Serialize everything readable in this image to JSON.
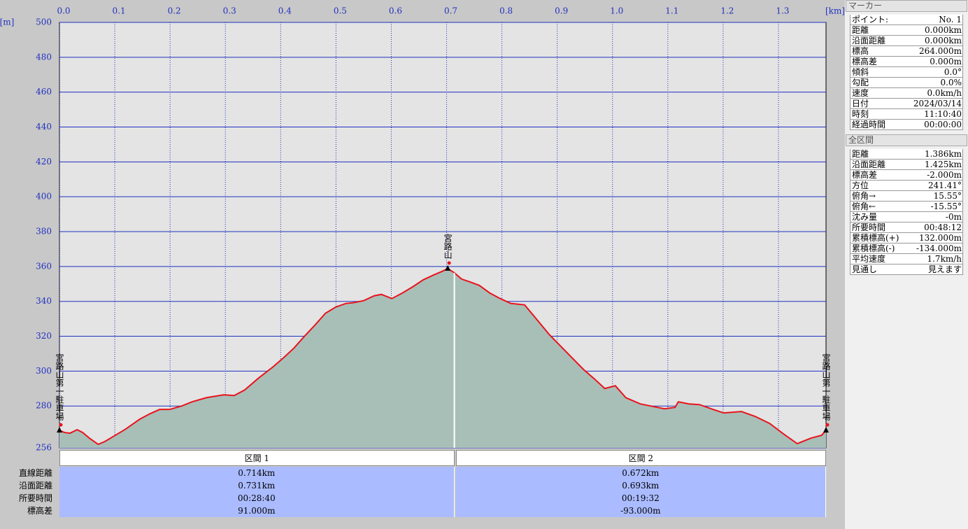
{
  "chart_data": {
    "type": "area",
    "x_unit": "[km]",
    "y_unit": "[m]",
    "x": [
      0,
      0.009,
      0.019,
      0.032,
      0.042,
      0.054,
      0.07,
      0.082,
      0.101,
      0.12,
      0.145,
      0.164,
      0.181,
      0.199,
      0.221,
      0.24,
      0.266,
      0.297,
      0.316,
      0.335,
      0.36,
      0.386,
      0.405,
      0.424,
      0.443,
      0.462,
      0.481,
      0.5,
      0.518,
      0.531,
      0.55,
      0.569,
      0.582,
      0.601,
      0.62,
      0.639,
      0.658,
      0.677,
      0.692,
      0.702,
      0.714,
      0.727,
      0.742,
      0.759,
      0.778,
      0.797,
      0.816,
      0.841,
      0.86,
      0.885,
      0.917,
      0.948,
      0.967,
      0.986,
      1.005,
      1.024,
      1.05,
      1.075,
      1.094,
      1.113,
      1.119,
      1.138,
      1.157,
      1.182,
      1.201,
      1.233,
      1.258,
      1.284,
      1.309,
      1.334,
      1.359,
      1.378,
      1.386
    ],
    "values": [
      266,
      264.8,
      264.4,
      266.4,
      264.8,
      261.6,
      258,
      259.6,
      263.2,
      266.8,
      272.4,
      275.6,
      278,
      278,
      280,
      282.4,
      284.8,
      286.4,
      286,
      289.2,
      296,
      302.4,
      307.6,
      313.2,
      320,
      326.4,
      333.2,
      336.8,
      338.8,
      339.2,
      340.4,
      343.2,
      344,
      341.6,
      344.8,
      348.4,
      352.4,
      355.2,
      357.2,
      358.8,
      356.4,
      352.8,
      351.2,
      349.2,
      344.8,
      341.6,
      338.8,
      338,
      330.8,
      321.2,
      310.8,
      300.8,
      295.6,
      290,
      291.6,
      284.8,
      281.2,
      279.6,
      278.4,
      279.2,
      282.4,
      281.2,
      280.8,
      278,
      276,
      276.8,
      274,
      270,
      264,
      258.4,
      261.6,
      263.2,
      266
    ],
    "line_color": "#e8141c",
    "fill_color": "#a8bfb8",
    "xlim": [
      0,
      1.386
    ],
    "ylim": [
      256,
      500
    ],
    "xticks": [
      {
        "value": 0,
        "label": "0.0"
      },
      0.1,
      0.2,
      0.3,
      0.4,
      0.5,
      0.6,
      0.7,
      0.8,
      0.9,
      {
        "value": 1,
        "label": "1.0"
      },
      1.1,
      1.2,
      1.3
    ],
    "yticks": [
      256,
      280,
      300,
      320,
      340,
      360,
      380,
      400,
      420,
      440,
      460,
      480,
      500
    ],
    "grid": true,
    "divider_x": 0.714,
    "markers": [
      {
        "label": "宮路山第一駐車場",
        "x": 0
      },
      {
        "label": "宮路山",
        "x": 0.702
      },
      {
        "label": "宮路山第一駐車場",
        "x": 1.386
      }
    ]
  },
  "sections": {
    "headers": [
      "区間 1",
      "区間 2"
    ],
    "rows": [
      [
        "直線距離",
        "0.714km",
        "0.672km"
      ],
      [
        "沿面距離",
        "0.731km",
        "0.693km"
      ],
      [
        "所要時間",
        "00:28:40",
        "00:19:32"
      ],
      [
        "標高差",
        "91.000m",
        "-93.000m"
      ]
    ]
  },
  "marker_panel": {
    "title": "マーカー",
    "rows": [
      [
        "ポイント:",
        "No. 1"
      ],
      [
        "距離",
        "0.000km"
      ],
      [
        "沿面距離",
        "0.000km"
      ],
      [
        "標高",
        "264.000m"
      ],
      [
        "標高差",
        "0.000m"
      ],
      [
        "傾斜",
        "0.0°"
      ],
      [
        "勾配",
        "0.0%"
      ],
      [
        "速度",
        "0.0km/h"
      ],
      [
        "日付",
        "2024/03/14"
      ],
      [
        "時刻",
        "11:10:40"
      ],
      [
        "経過時間",
        "00:00:00"
      ]
    ]
  },
  "total_panel": {
    "title": "全区間",
    "rows": [
      [
        "距離",
        "1.386km"
      ],
      [
        "沿面距離",
        "1.425km"
      ],
      [
        "標高差",
        "-2.000m"
      ],
      [
        "方位",
        "241.41°"
      ],
      [
        "俯角→",
        "15.55°"
      ],
      [
        "俯角←",
        "-15.55°"
      ],
      [
        "沈み量",
        "-0m"
      ],
      [
        "所要時間",
        "00:48:12"
      ],
      [
        "累積標高(+)",
        "132.000m"
      ],
      [
        "累積標高(-)",
        "-134.000m"
      ],
      [
        "平均速度",
        "1.7km/h"
      ],
      [
        "見通し",
        "見えます"
      ]
    ]
  }
}
